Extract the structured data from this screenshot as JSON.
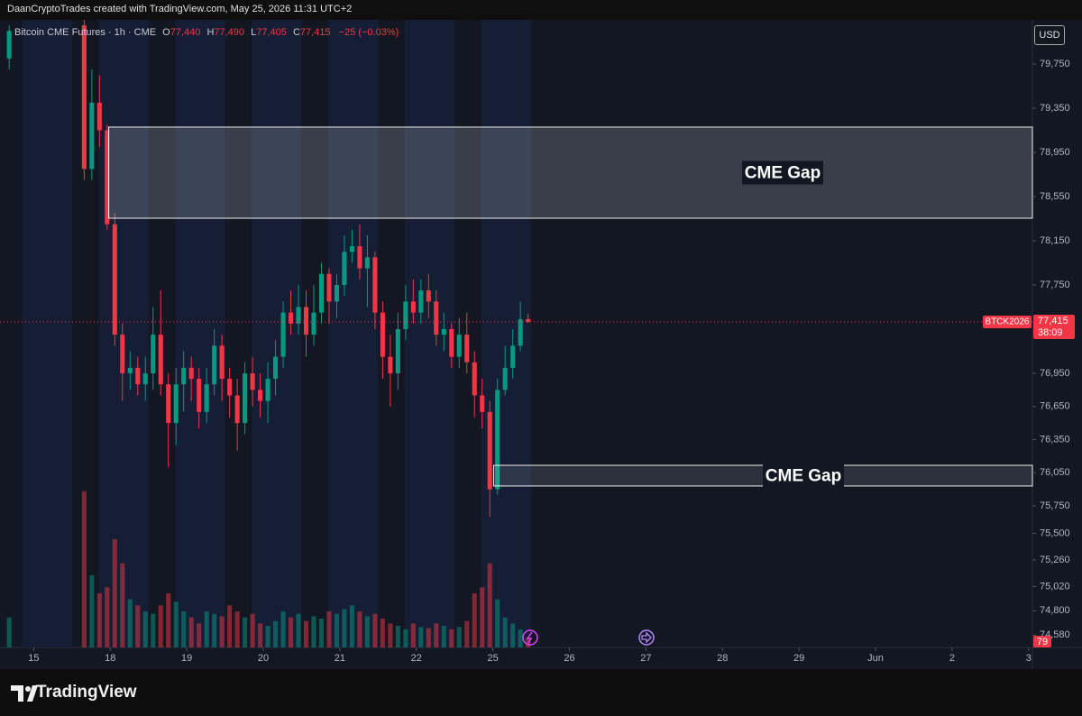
{
  "header": {
    "credit": "DaanCryptoTrades created with TradingView.com, May 25, 2026 11:31 UTC+2",
    "symbol": "Bitcoin CME Futures · 1h · CME",
    "ohlc": [
      {
        "key": "O",
        "value": "77,440"
      },
      {
        "key": "H",
        "value": "77,490"
      },
      {
        "key": "L",
        "value": "77,405"
      },
      {
        "key": "C",
        "value": "77,415"
      }
    ],
    "change": "−25 (−0.03%)",
    "currency": "USD"
  },
  "chart_data": {
    "type": "candlestick",
    "x": [
      -0.32,
      0.66,
      0.76,
      0.86,
      0.96,
      1.06,
      1.16,
      1.26,
      1.36,
      1.46,
      1.56,
      1.66,
      1.76,
      1.86,
      1.96,
      2.06,
      2.16,
      2.26,
      2.36,
      2.46,
      2.56,
      2.66,
      2.76,
      2.86,
      2.96,
      3.06,
      3.16,
      3.26,
      3.36,
      3.46,
      3.56,
      3.66,
      3.76,
      3.86,
      3.96,
      4.06,
      4.16,
      4.26,
      4.36,
      4.46,
      4.56,
      4.66,
      4.76,
      4.86,
      4.96,
      5.06,
      5.16,
      5.26,
      5.36,
      5.46,
      5.56,
      5.66,
      5.76,
      5.86,
      5.96,
      6.06,
      6.16,
      6.26,
      6.36,
      6.46
    ],
    "open": [
      79800,
      80100,
      78800,
      79400,
      79150,
      78300,
      77300,
      76950,
      77000,
      76850,
      76950,
      77300,
      76850,
      76500,
      76850,
      77000,
      76900,
      76600,
      76850,
      77200,
      76900,
      76750,
      76500,
      76950,
      76800,
      76700,
      76900,
      77100,
      77500,
      77400,
      77550,
      77300,
      77500,
      77850,
      77600,
      77750,
      78050,
      78100,
      77900,
      78000,
      77500,
      77100,
      76950,
      77350,
      77600,
      77500,
      77700,
      77600,
      77300,
      77350,
      77100,
      77300,
      77050,
      76750,
      76600,
      75900,
      76800,
      77000,
      77200,
      77440
    ],
    "high": [
      80100,
      80150,
      79700,
      79650,
      79200,
      78400,
      77400,
      77150,
      77100,
      77100,
      77550,
      77700,
      76950,
      77000,
      77150,
      77100,
      77000,
      77000,
      77350,
      77300,
      77000,
      76900,
      77050,
      77100,
      76950,
      77050,
      77250,
      77600,
      77700,
      77750,
      77700,
      77750,
      77950,
      77900,
      77850,
      78200,
      78250,
      78300,
      78200,
      78050,
      77600,
      77300,
      77500,
      77750,
      77800,
      77800,
      77850,
      77700,
      77500,
      77400,
      77450,
      77500,
      77150,
      76900,
      76700,
      76900,
      77200,
      77350,
      77600,
      77490
    ],
    "low": [
      79700,
      78700,
      78700,
      79000,
      78250,
      77200,
      76700,
      76800,
      76750,
      76700,
      76800,
      76750,
      76100,
      76300,
      76600,
      76700,
      76450,
      76500,
      76750,
      76700,
      76550,
      76250,
      76400,
      76650,
      76550,
      76500,
      76750,
      77000,
      77300,
      77300,
      77100,
      77200,
      77400,
      77400,
      77450,
      77650,
      77950,
      77800,
      77550,
      77350,
      76900,
      76650,
      76800,
      77250,
      77400,
      77400,
      77450,
      77200,
      77150,
      77000,
      77000,
      76950,
      76550,
      76450,
      75650,
      75850,
      76750,
      76900,
      77150,
      77405
    ],
    "close": [
      80050,
      78800,
      79400,
      79150,
      78300,
      77300,
      76950,
      77000,
      76850,
      76950,
      77300,
      76850,
      76500,
      76850,
      77000,
      76900,
      76600,
      76850,
      77200,
      76900,
      76750,
      76500,
      76950,
      76800,
      76700,
      76900,
      77100,
      77500,
      77400,
      77550,
      77300,
      77500,
      77850,
      77600,
      77750,
      78050,
      78100,
      77900,
      78000,
      77500,
      77100,
      76950,
      77350,
      77600,
      77500,
      77700,
      77600,
      77300,
      77350,
      77100,
      77300,
      77050,
      76750,
      76600,
      75900,
      76800,
      77000,
      77200,
      77440,
      77415
    ],
    "volume": [
      250,
      1300,
      600,
      450,
      500,
      900,
      700,
      400,
      350,
      300,
      280,
      350,
      450,
      380,
      300,
      250,
      200,
      300,
      280,
      260,
      350,
      300,
      250,
      280,
      200,
      180,
      220,
      300,
      250,
      280,
      220,
      260,
      240,
      300,
      280,
      320,
      350,
      300,
      260,
      280,
      240,
      200,
      180,
      150,
      200,
      170,
      160,
      200,
      180,
      150,
      170,
      220,
      450,
      500,
      700,
      400,
      250,
      200,
      150,
      79
    ],
    "colors": {
      "up": "#089981",
      "down": "#f23645"
    },
    "xlim": [
      -0.44,
      13.05
    ],
    "xticks": [
      {
        "value": 0,
        "label": "15"
      },
      {
        "value": 1,
        "label": "18"
      },
      {
        "value": 2,
        "label": "19"
      },
      {
        "value": 3,
        "label": "20"
      },
      {
        "value": 4,
        "label": "21"
      },
      {
        "value": 5,
        "label": "22"
      },
      {
        "value": 6,
        "label": "25"
      },
      {
        "value": 7,
        "label": "26"
      },
      {
        "value": 8,
        "label": "27"
      },
      {
        "value": 9,
        "label": "28"
      },
      {
        "value": 10,
        "label": "29"
      },
      {
        "value": 11,
        "label": "Jun"
      },
      {
        "value": 12,
        "label": "2"
      },
      {
        "value": 13,
        "label": "3"
      }
    ],
    "ylim": [
      74468,
      80150
    ],
    "yticks": [
      {
        "value": 79750,
        "label": "79,750"
      },
      {
        "value": 79350,
        "label": "79,350"
      },
      {
        "value": 78950,
        "label": "78,950"
      },
      {
        "value": 78550,
        "label": "78,550"
      },
      {
        "value": 78150,
        "label": "78,150"
      },
      {
        "value": 77750,
        "label": "77,750"
      },
      {
        "value": 76950,
        "label": "76,950"
      },
      {
        "value": 76650,
        "label": "76,650"
      },
      {
        "value": 76350,
        "label": "76,350"
      },
      {
        "value": 76050,
        "label": "76,050"
      },
      {
        "value": 75750,
        "label": "75,750"
      },
      {
        "value": 75500,
        "label": "75,500"
      },
      {
        "value": 75260,
        "label": "75,260"
      },
      {
        "value": 75020,
        "label": "75,020"
      },
      {
        "value": 74800,
        "label": "74,800"
      },
      {
        "value": 74580,
        "label": "74,580"
      }
    ],
    "y2lim": [
      0,
      1500
    ],
    "grid": false,
    "last_price": {
      "value": 77415,
      "label": "77,415",
      "symbol": "BTCK2026",
      "countdown": "38:09"
    },
    "annotations": [
      {
        "text": "CME Gap",
        "x0": 0.98,
        "ylim": [
          78354,
          79179
        ]
      },
      {
        "text": "CME Gap",
        "x0": 6.01,
        "ylim": [
          75930,
          76117
        ]
      }
    ]
  },
  "footer": {
    "logo": "TradingView"
  }
}
